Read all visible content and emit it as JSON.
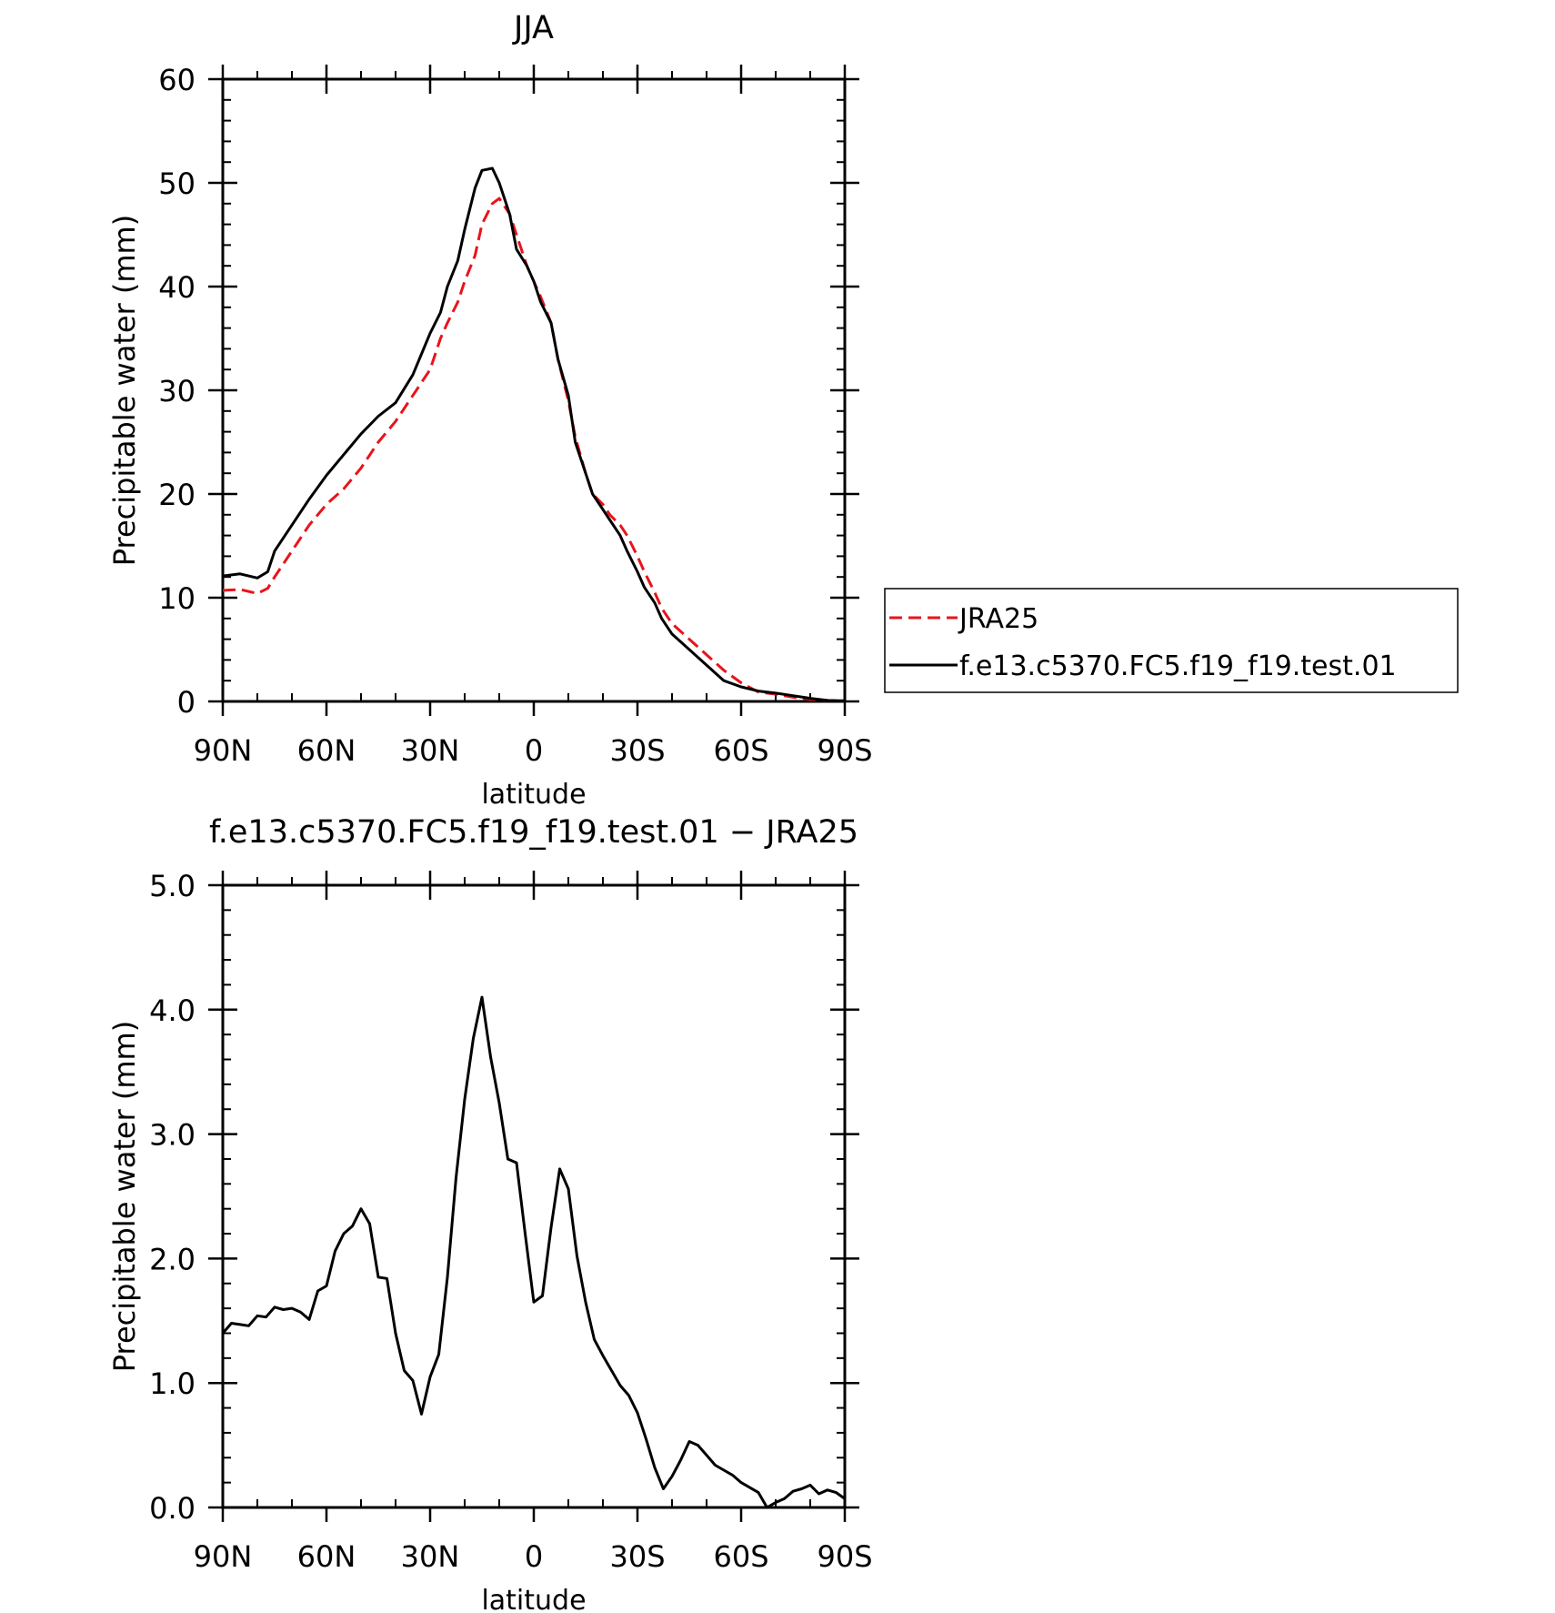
{
  "chart_data": [
    {
      "type": "line",
      "title": "JJA",
      "xlabel": "latitude",
      "ylabel": "Precipitable water (mm)",
      "xlim": [
        -90,
        90
      ],
      "ylim": [
        0,
        60
      ],
      "xticks": [
        -90,
        -60,
        -30,
        0,
        30,
        60,
        90
      ],
      "xtick_labels": [
        "90N",
        "60N",
        "30N",
        "0",
        "30S",
        "60S",
        "90S"
      ],
      "yticks": [
        0,
        10,
        20,
        30,
        40,
        50,
        60
      ],
      "ytick_labels": [
        "0",
        "10",
        "20",
        "30",
        "40",
        "50",
        "60"
      ],
      "grid": false,
      "legend": "right",
      "series": [
        {
          "name": "JRA25",
          "color": "#e8141c",
          "dash": "dashed",
          "x": [
            -90,
            -85,
            -80,
            -77,
            -75,
            -70,
            -65,
            -60,
            -55,
            -50,
            -45,
            -40,
            -35,
            -30,
            -27,
            -25,
            -22,
            -20,
            -17,
            -15,
            -12,
            -10,
            -7,
            -5,
            -2,
            0,
            2,
            5,
            7,
            10,
            12,
            15,
            17,
            20,
            22,
            25,
            27,
            30,
            32,
            35,
            37,
            40,
            45,
            50,
            55,
            60,
            65,
            70,
            75,
            80,
            85,
            90
          ],
          "y": [
            10.7,
            10.8,
            10.4,
            10.9,
            12,
            14.5,
            17,
            19,
            20.5,
            22.5,
            25,
            27,
            29.5,
            32,
            35,
            36.5,
            38.5,
            40.5,
            43,
            46,
            48,
            48.5,
            47,
            45,
            42,
            40.5,
            39,
            36.5,
            33,
            29,
            25.5,
            22,
            20,
            19,
            18,
            17,
            16,
            14,
            12.5,
            10.5,
            9,
            7.5,
            6,
            4.5,
            3,
            1.8,
            0.9,
            0.7,
            0.4,
            0.2,
            0.1,
            0.05
          ]
        },
        {
          "name": "f.e13.c5370.FC5.f19_f19.test.01",
          "color": "#000000",
          "dash": "solid",
          "x": [
            -90,
            -85,
            -80,
            -77,
            -75,
            -70,
            -65,
            -60,
            -55,
            -50,
            -45,
            -40,
            -35,
            -30,
            -27,
            -25,
            -22,
            -20,
            -17,
            -15,
            -12,
            -10,
            -7,
            -5,
            -2,
            0,
            2,
            5,
            7,
            10,
            12,
            15,
            17,
            20,
            22,
            25,
            27,
            30,
            32,
            35,
            37,
            40,
            45,
            50,
            55,
            60,
            65,
            70,
            75,
            80,
            85,
            90
          ],
          "y": [
            12.1,
            12.3,
            11.9,
            12.5,
            14.5,
            17,
            19.5,
            21.8,
            23.8,
            25.8,
            27.5,
            28.8,
            31.5,
            35.5,
            37.5,
            40,
            42.5,
            45.5,
            49.5,
            51.2,
            51.4,
            50,
            47,
            43.6,
            42,
            40.5,
            38.5,
            36.5,
            33,
            29.5,
            25,
            22,
            20,
            18.5,
            17.5,
            16,
            14.5,
            12.5,
            11,
            9.5,
            8,
            6.5,
            5,
            3.5,
            2,
            1.4,
            1,
            0.8,
            0.55,
            0.3,
            0.1,
            0.05
          ]
        }
      ]
    },
    {
      "type": "line",
      "title": "f.e13.c5370.FC5.f19_f19.test.01 − JRA25",
      "xlabel": "latitude",
      "ylabel": "Precipitable water (mm)",
      "xlim": [
        -90,
        90
      ],
      "ylim": [
        0,
        5
      ],
      "xticks": [
        -90,
        -60,
        -30,
        0,
        30,
        60,
        90
      ],
      "xtick_labels": [
        "90N",
        "60N",
        "30N",
        "0",
        "30S",
        "60S",
        "90S"
      ],
      "yticks": [
        0,
        1,
        2,
        3,
        4,
        5
      ],
      "ytick_labels": [
        "0.0",
        "1.0",
        "2.0",
        "3.0",
        "4.0",
        "5.0"
      ],
      "grid": false,
      "series": [
        {
          "color": "#000000",
          "dash": "solid",
          "x": [
            -90,
            -87.5,
            -85,
            -82.5,
            -80,
            -77.5,
            -75,
            -72.5,
            -70,
            -67.5,
            -65,
            -62.5,
            -60,
            -57.5,
            -55,
            -52.5,
            -50,
            -47.5,
            -45,
            -42.5,
            -40,
            -37.5,
            -35,
            -32.5,
            -30,
            -27.5,
            -25,
            -22.5,
            -20,
            -17.5,
            -15,
            -12.5,
            -10,
            -7.5,
            -5,
            -2.5,
            0,
            2.5,
            5,
            7.5,
            10,
            12.5,
            15,
            17.5,
            20,
            22.5,
            25,
            27.5,
            30,
            32.5,
            35,
            37.5,
            40,
            42.5,
            45,
            47.5,
            50,
            52.5,
            55,
            57.5,
            60,
            62.5,
            65,
            67.5,
            70,
            72.5,
            75,
            77.5,
            80,
            82.5,
            85,
            87.5,
            90
          ],
          "y": [
            1.4,
            1.48,
            1.47,
            1.46,
            1.54,
            1.53,
            1.61,
            1.59,
            1.6,
            1.57,
            1.51,
            1.74,
            1.78,
            2.06,
            2.2,
            2.26,
            2.4,
            2.28,
            1.85,
            1.84,
            1.4,
            1.1,
            1.02,
            0.75,
            1.05,
            1.23,
            1.85,
            2.65,
            3.28,
            3.77,
            4.1,
            3.62,
            3.25,
            2.8,
            2.77,
            2.2,
            1.65,
            1.7,
            2.25,
            2.72,
            2.56,
            2.02,
            1.65,
            1.35,
            1.22,
            1.1,
            0.98,
            0.9,
            0.76,
            0.55,
            0.32,
            0.15,
            0.25,
            0.38,
            0.53,
            0.5,
            0.42,
            0.34,
            0.3,
            0.26,
            0.2,
            0.16,
            0.12,
            0,
            0.04,
            0.07,
            0.13,
            0.15,
            0.18,
            0.11,
            0.14,
            0.12,
            0.07
          ]
        }
      ]
    }
  ]
}
